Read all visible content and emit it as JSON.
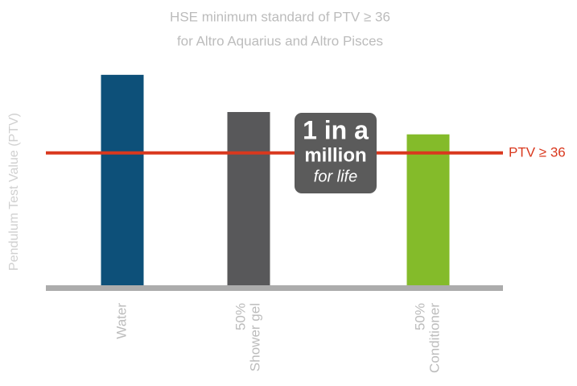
{
  "chart_data": {
    "type": "bar",
    "title": [
      "HSE minimum standard of PTV ≥ 36",
      "for Altro Aquarius and Altro Pisces"
    ],
    "ylabel": "Pendulum Test Value (PTV)",
    "categories": [
      [
        "Water"
      ],
      [
        "50%",
        "Shower gel"
      ],
      [
        "50%",
        "Conditioner"
      ]
    ],
    "values": [
      57,
      47,
      41
    ],
    "colors": [
      "#0d5079",
      "#58585a",
      "#84bb2a"
    ],
    "ylim": [
      0,
      60
    ],
    "threshold": {
      "value": 36,
      "label": "PTV ≥ 36",
      "color": "#d9381e"
    },
    "logo": [
      "1 in a",
      "million",
      "for life"
    ]
  }
}
